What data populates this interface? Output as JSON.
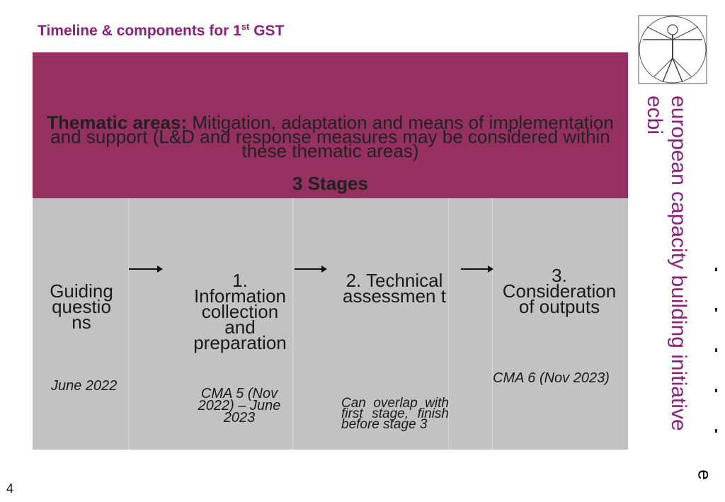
{
  "slide": {
    "title_main": "Timeline & components for 1",
    "title_sup": "st",
    "title_tail": " GST",
    "thematic_label": "Thematic areas:",
    "thematic_text": " Mitigation, adaptation and means of implementation and support  (L&D and response measures may be considered within these thematic areas)",
    "stages_heading": "3 Stages",
    "page_number": "4"
  },
  "columns": [
    {
      "heading": "Guiding questio ns",
      "date": "June 2022"
    },
    {
      "heading": "1. Information collection and preparation",
      "date": "CMA 5 (Nov 2022) – June 2023"
    },
    {
      "heading": "2. Technical assessmen t",
      "date": "Can overlap with first stage, finish before stage 3"
    },
    {
      "heading": "3. Consideration of outputs",
      "date": "CMA 6 (Nov 2023)"
    }
  ],
  "brand": {
    "line1": "european capacity building initiative",
    "line2": "ecbi",
    "side_letter": "e"
  },
  "colors": {
    "accent": "#8a1f7d",
    "banner": "#963060",
    "panel": "#c2c2c2"
  }
}
